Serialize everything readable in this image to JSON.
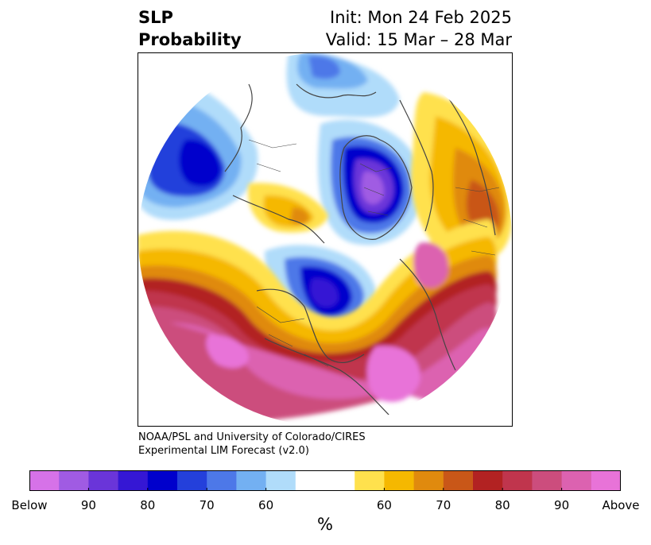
{
  "title": {
    "left_line1": "SLP",
    "left_line2": "Probability",
    "right_line1": "Init: Mon 24 Feb 2025",
    "right_line2": "Valid: 15 Mar – 28 Mar"
  },
  "credit": {
    "line1": "NOAA/PSL and University of Colorado/CIRES",
    "line2": "Experimental LIM Forecast (v2.0)"
  },
  "colorbar": {
    "unit_label": "%",
    "colors": [
      "#d672e8",
      "#a05be3",
      "#6a35d9",
      "#3517d4",
      "#0000cc",
      "#2440db",
      "#4d78e8",
      "#73b0f2",
      "#b0dcfa",
      "#ffffff",
      "#ffffff",
      "#ffe14d",
      "#f5b800",
      "#e08a0e",
      "#c95718",
      "#b22222",
      "#c0354d",
      "#cc4d7d",
      "#dc62b0",
      "#e873d8"
    ],
    "ticks": [
      {
        "label": "Below",
        "index": 0
      },
      {
        "label": "90",
        "index": 2
      },
      {
        "label": "80",
        "index": 4
      },
      {
        "label": "70",
        "index": 6
      },
      {
        "label": "60",
        "index": 8
      },
      {
        "label": "60",
        "index": 12
      },
      {
        "label": "70",
        "index": 14
      },
      {
        "label": "80",
        "index": 16
      },
      {
        "label": "90",
        "index": 18
      },
      {
        "label": "Above",
        "index": 20
      }
    ]
  },
  "map": {
    "projection": "north-polar-stereographic",
    "field": "sea-level-pressure-probability"
  }
}
